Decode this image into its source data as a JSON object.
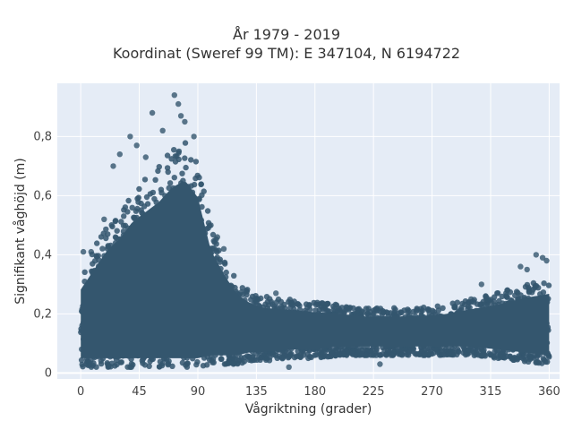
{
  "chart_data": {
    "type": "scatter",
    "title": "År 1979 - 2019",
    "subtitle": "Koordinat (Sweref 99 TM): E 347104, N 6194722",
    "xlabel": "Vågriktning (grader)",
    "ylabel": "Signifikant våghöjd (m)",
    "xlim": [
      -18,
      368
    ],
    "ylim": [
      -0.02,
      0.98
    ],
    "xticks": [
      0,
      45,
      90,
      135,
      180,
      225,
      270,
      315,
      360
    ],
    "xtick_labels": [
      "0",
      "45",
      "90",
      "135",
      "180",
      "225",
      "270",
      "315",
      "360"
    ],
    "yticks": [
      0,
      0.2,
      0.4,
      0.6,
      0.8
    ],
    "ytick_labels": [
      "0",
      "0,2",
      "0,4",
      "0,6",
      "0,8"
    ],
    "grid": true,
    "color": "#34566e",
    "envelope": {
      "direction": [
        0,
        10,
        20,
        30,
        40,
        50,
        60,
        70,
        80,
        90,
        100,
        110,
        120,
        130,
        140,
        160,
        180,
        200,
        220,
        240,
        260,
        280,
        300,
        320,
        340,
        360
      ],
      "min": [
        0.02,
        0.02,
        0.02,
        0.02,
        0.02,
        0.02,
        0.02,
        0.02,
        0.02,
        0.02,
        0.03,
        0.03,
        0.03,
        0.04,
        0.04,
        0.05,
        0.05,
        0.06,
        0.06,
        0.06,
        0.06,
        0.06,
        0.06,
        0.05,
        0.04,
        0.03
      ],
      "max": [
        0.34,
        0.42,
        0.5,
        0.55,
        0.62,
        0.66,
        0.7,
        0.76,
        0.79,
        0.72,
        0.5,
        0.4,
        0.32,
        0.28,
        0.26,
        0.25,
        0.24,
        0.23,
        0.22,
        0.22,
        0.22,
        0.23,
        0.25,
        0.27,
        0.3,
        0.32
      ]
    },
    "outliers": [
      {
        "x": 72,
        "y": 0.94
      },
      {
        "x": 75,
        "y": 0.91
      },
      {
        "x": 55,
        "y": 0.88
      },
      {
        "x": 77,
        "y": 0.87
      },
      {
        "x": 80,
        "y": 0.85
      },
      {
        "x": 63,
        "y": 0.82
      },
      {
        "x": 38,
        "y": 0.8
      },
      {
        "x": 87,
        "y": 0.8
      },
      {
        "x": 43,
        "y": 0.77
      },
      {
        "x": 30,
        "y": 0.74
      },
      {
        "x": 50,
        "y": 0.73
      },
      {
        "x": 25,
        "y": 0.7
      },
      {
        "x": 18,
        "y": 0.52
      },
      {
        "x": 2,
        "y": 0.41
      },
      {
        "x": 8,
        "y": 0.41
      },
      {
        "x": 110,
        "y": 0.42
      },
      {
        "x": 100,
        "y": 0.5
      },
      {
        "x": 105,
        "y": 0.46
      },
      {
        "x": 308,
        "y": 0.3
      },
      {
        "x": 338,
        "y": 0.36
      },
      {
        "x": 343,
        "y": 0.35
      },
      {
        "x": 350,
        "y": 0.4
      },
      {
        "x": 355,
        "y": 0.39
      },
      {
        "x": 358,
        "y": 0.38
      },
      {
        "x": 320,
        "y": 0.27
      },
      {
        "x": 328,
        "y": 0.28
      },
      {
        "x": 150,
        "y": 0.27
      },
      {
        "x": 300,
        "y": 0.25
      },
      {
        "x": 160,
        "y": 0.02
      },
      {
        "x": 230,
        "y": 0.03
      }
    ]
  }
}
